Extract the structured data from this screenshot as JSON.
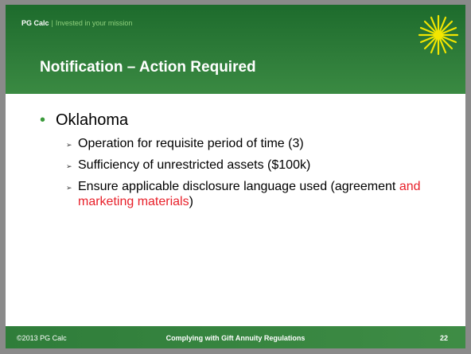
{
  "header": {
    "brand": "PG Calc",
    "separator": "|",
    "tagline": "Invested in your mission"
  },
  "title": "Notification – Action Required",
  "bullets": [
    {
      "text": "Oklahoma",
      "sub": [
        {
          "parts": [
            {
              "text": "Operation for requisite period of time (3)"
            }
          ]
        },
        {
          "parts": [
            {
              "text": "Sufficiency of unrestricted assets ($100k)"
            }
          ]
        },
        {
          "parts": [
            {
              "text": "Ensure applicable disclosure language used (agreement "
            },
            {
              "text": "and marketing materials",
              "highlight": true
            },
            {
              "text": ")"
            }
          ]
        }
      ]
    }
  ],
  "footer": {
    "copyright": "©2013 PG Calc",
    "subject": "Complying with Gift Annuity Regulations",
    "page": "22"
  }
}
